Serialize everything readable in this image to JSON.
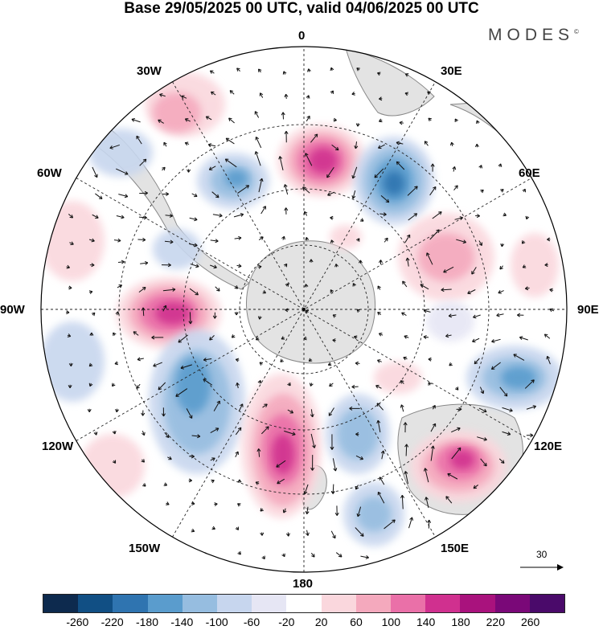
{
  "title": "Base 29/05/2025 00 UTC, valid 04/06/2025 00 UTC",
  "brand": "MODES",
  "brand_mark": "©",
  "longitude_labels": {
    "lon_0": "0",
    "lon_30E": "30E",
    "lon_60E": "60E",
    "lon_90E": "90E",
    "lon_120E": "120E",
    "lon_150E": "150E",
    "lon_180": "180",
    "lon_150W": "150W",
    "lon_120W": "120W",
    "lon_90W": "90W",
    "lon_60W": "60W",
    "lon_30W": "30W"
  },
  "vector_scale_label": "30",
  "colorbar": {
    "ticks": [
      "-260",
      "-220",
      "-180",
      "-140",
      "-100",
      "-60",
      "-20",
      "20",
      "60",
      "100",
      "140",
      "180",
      "220",
      "260"
    ],
    "colors": [
      "#0d2a4e",
      "#114f84",
      "#2f74b0",
      "#5a9ccd",
      "#96bde0",
      "#c7d6ee",
      "#e6e6f4",
      "#ffffff",
      "#fad7dd",
      "#f4a9bd",
      "#ea70a8",
      "#d0308f",
      "#a9127d",
      "#7a0878",
      "#4a0a6a"
    ]
  },
  "map_colors": {
    "land": "#e3e3e3",
    "coast": "#888888"
  }
}
